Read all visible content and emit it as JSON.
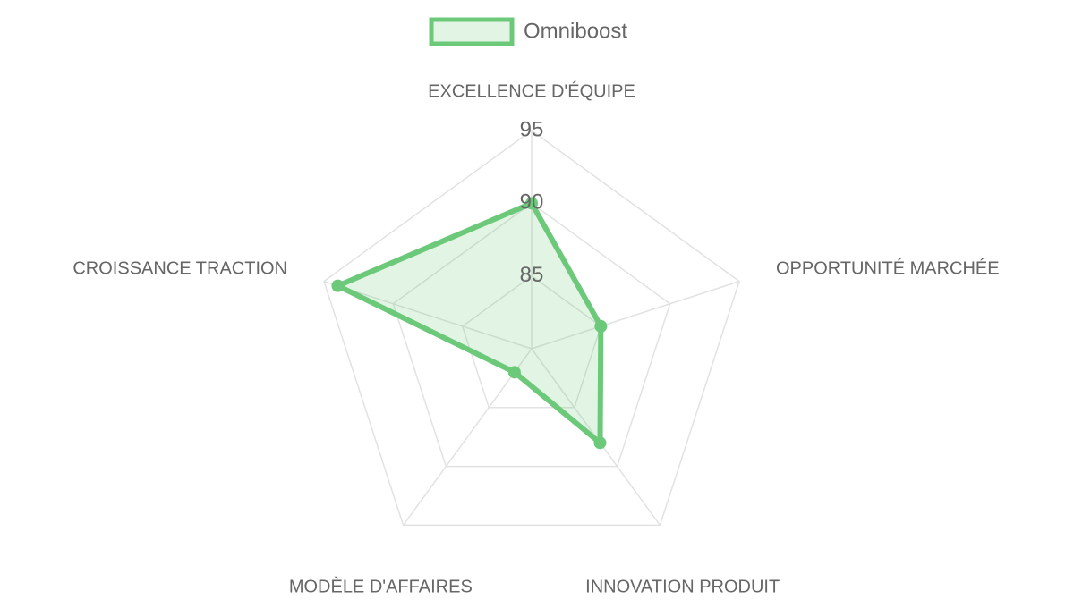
{
  "chart_data": {
    "type": "radar",
    "categories": [
      "EXCELLENCE D'ÉQUIPE",
      "OPPORTUNITÉ MARCHÉE",
      "INNOVATION PRODUIT",
      "MODÈLE D'AFFAIRES",
      "CROISSANCE TRACTION"
    ],
    "series": [
      {
        "name": "Omniboost",
        "color": "#6cc97a",
        "values": [
          90,
          85,
          88,
          82,
          94
        ]
      }
    ],
    "ylim": [
      80,
      95
    ],
    "yticks": [
      85,
      90,
      95
    ],
    "grid": true,
    "legend": "top"
  }
}
